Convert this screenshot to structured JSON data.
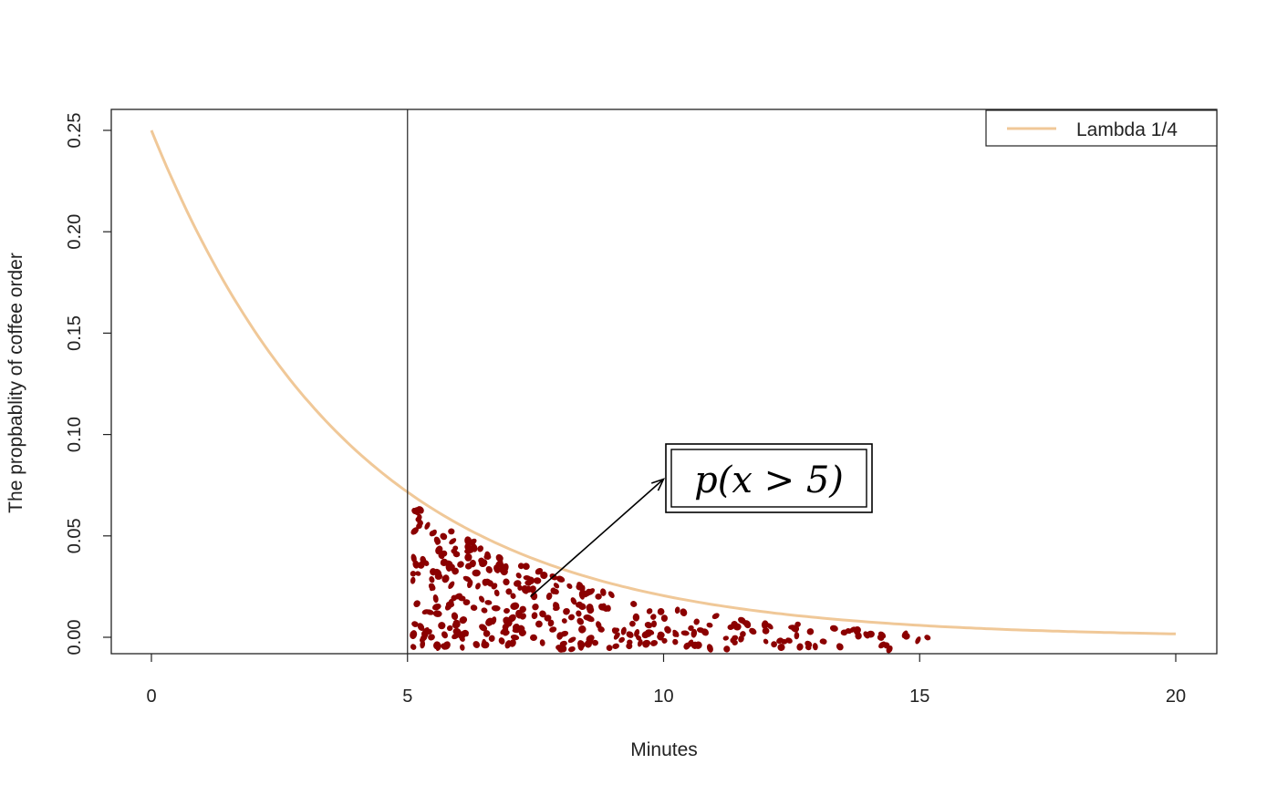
{
  "chart_data": {
    "type": "line",
    "title": "",
    "xlabel": "Minutes",
    "ylabel": "The propbablity of coffee order",
    "xlim": [
      0,
      20
    ],
    "ylim": [
      0,
      0.25
    ],
    "x_ticks": [
      0,
      5,
      10,
      15,
      20
    ],
    "x_tick_labels": [
      "0",
      "5",
      "10",
      "15",
      "20"
    ],
    "y_ticks": [
      0,
      0.05,
      0.1,
      0.15,
      0.2,
      0.25
    ],
    "y_tick_labels": [
      "0.00",
      "0.05",
      "0.10",
      "0.15",
      "0.20",
      "0.25"
    ],
    "grid": false,
    "series": [
      {
        "name": "Lambda 1/4",
        "rate": 0.25,
        "color": "#f0c898",
        "x": [
          0,
          1,
          2,
          3,
          4,
          5,
          6,
          7,
          8,
          9,
          10,
          11,
          12,
          13,
          14,
          15,
          16,
          17,
          18,
          19,
          20
        ],
        "y": [
          0.25,
          0.1947,
          0.1516,
          0.1181,
          0.092,
          0.0716,
          0.0558,
          0.0435,
          0.0338,
          0.0264,
          0.0205,
          0.016,
          0.0124,
          0.0097,
          0.0075,
          0.0059,
          0.0046,
          0.0036,
          0.0028,
          0.0022,
          0.0017
        ]
      }
    ],
    "vline": {
      "x": 5,
      "color": "#333333"
    },
    "shaded_region": {
      "x_from": 5,
      "x_to": 17.3,
      "fill": "scattered points",
      "color": "#8b0000"
    },
    "annotation": {
      "text": "p(x > 5)",
      "box_x": 10.1,
      "box_y": 0.078,
      "arrow_from": [
        7.4,
        0.02
      ],
      "arrow_to": [
        10.0,
        0.078
      ]
    },
    "legend": {
      "position": "top-right",
      "entries": [
        "Lambda 1/4"
      ]
    }
  }
}
